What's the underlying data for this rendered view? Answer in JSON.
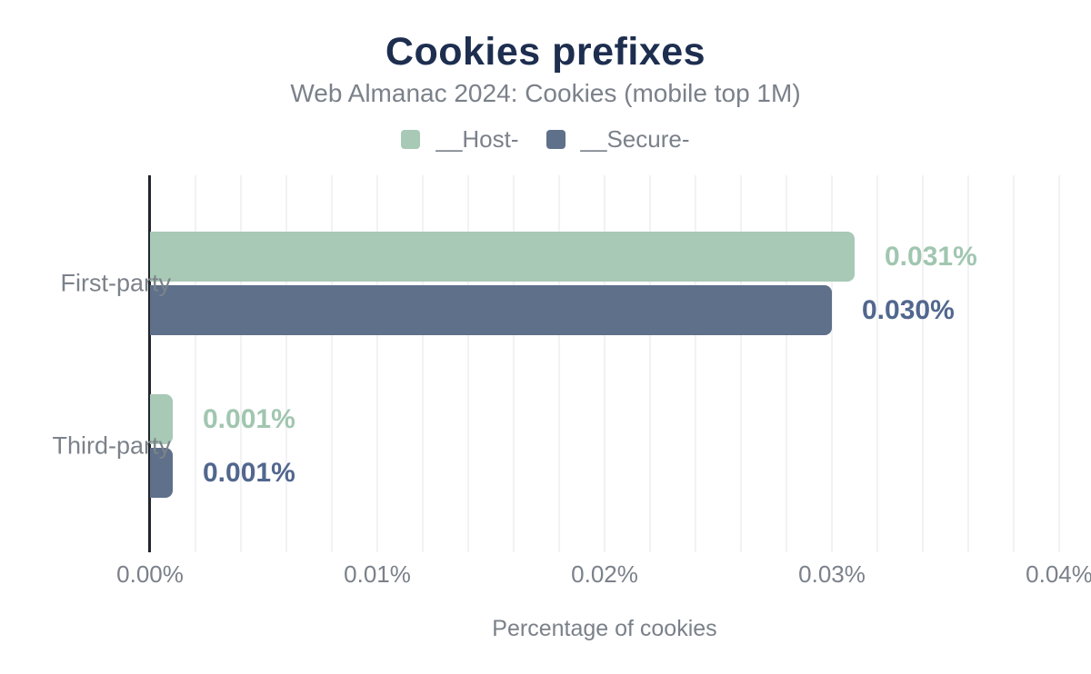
{
  "header": {
    "title": "Cookies prefixes",
    "subtitle": "Web Almanac 2024: Cookies (mobile top 1M)"
  },
  "legend": [
    {
      "label": "__Host-",
      "color": "#a7c9b6"
    },
    {
      "label": "__Secure-",
      "color": "#5e708a"
    }
  ],
  "colors": {
    "title": "#1d2e4f",
    "muted_text": "#7b818a",
    "axis_line": "#22252d",
    "gridline": "#f2f2f4",
    "host_green": "#a7c9b6",
    "secure_blue": "#5e708a",
    "host_label_text": "#a1c6b0",
    "secure_label_text": "#51678e"
  },
  "chart_data": {
    "type": "bar",
    "orientation": "horizontal",
    "title": "Cookies prefixes",
    "subtitle": "Web Almanac 2024: Cookies (mobile top 1M)",
    "categories": [
      "First-party",
      "Third-party"
    ],
    "series": [
      {
        "name": "__Host-",
        "color": "#a7c9b6",
        "label_color": "#a1c6b0",
        "values": [
          0.031,
          0.001
        ],
        "labels": [
          "0.031%",
          "0.001%"
        ]
      },
      {
        "name": "__Secure-",
        "color": "#5e708a",
        "label_color": "#51678e",
        "values": [
          0.03,
          0.001
        ],
        "labels": [
          "0.030%",
          "0.001%"
        ]
      }
    ],
    "xlabel": "Percentage of cookies",
    "ylabel": "",
    "xlim": [
      0,
      0.04
    ],
    "x_ticks": [
      "0.00%",
      "0.01%",
      "0.02%",
      "0.03%",
      "0.04%"
    ],
    "x_tick_values": [
      0,
      0.01,
      0.02,
      0.03,
      0.04
    ],
    "minor_grid_step": 0.002,
    "grid": "vertical",
    "legend_position": "top"
  }
}
